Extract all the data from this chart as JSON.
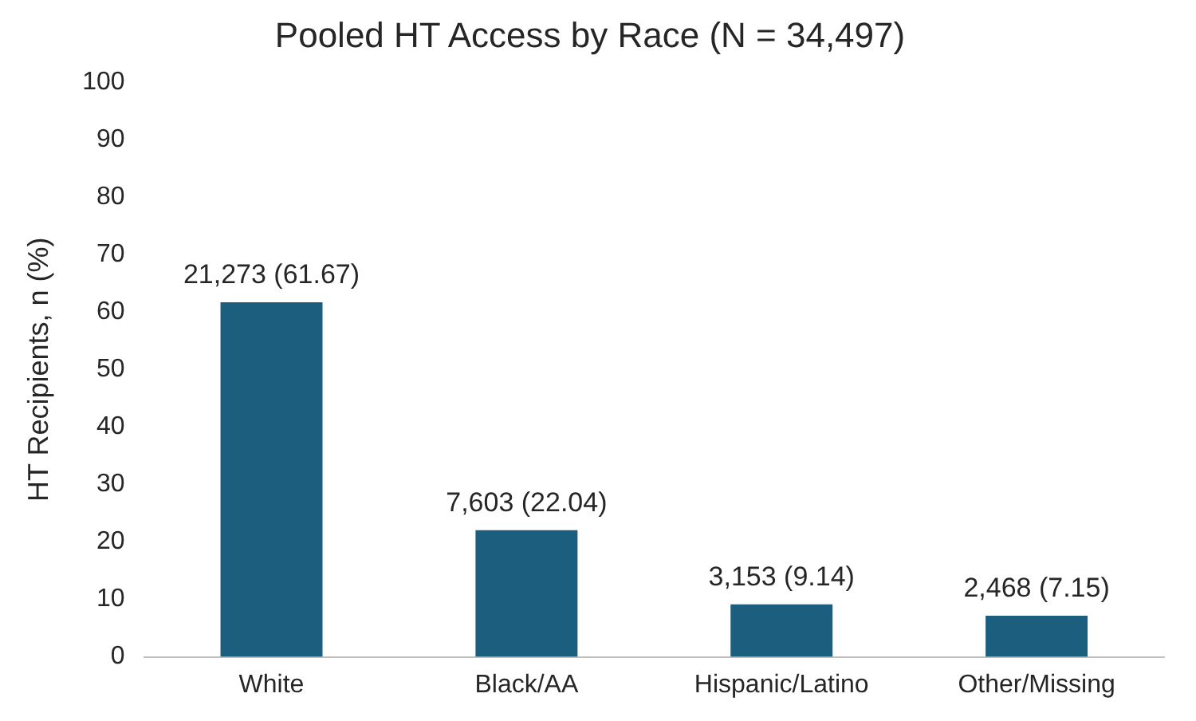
{
  "chart_data": {
    "type": "bar",
    "title": "Pooled HT Access by Race (N = 34,497)",
    "ylabel": "HT Recipients, n (%)",
    "categories": [
      "White",
      "Black/AA",
      "Hispanic/Latino",
      "Other/Missing"
    ],
    "values": [
      61.67,
      22.04,
      9.14,
      7.15
    ],
    "value_labels": [
      "21,273 (61.67)",
      "7,603 (22.04)",
      "3,153 (9.14)",
      "2,468 (7.15)"
    ],
    "color": "#1b5e7e",
    "ylim": [
      0,
      100
    ],
    "yticks": [
      0,
      10,
      20,
      30,
      40,
      50,
      60,
      70,
      80,
      90,
      100
    ],
    "grid": false,
    "legend": false
  }
}
